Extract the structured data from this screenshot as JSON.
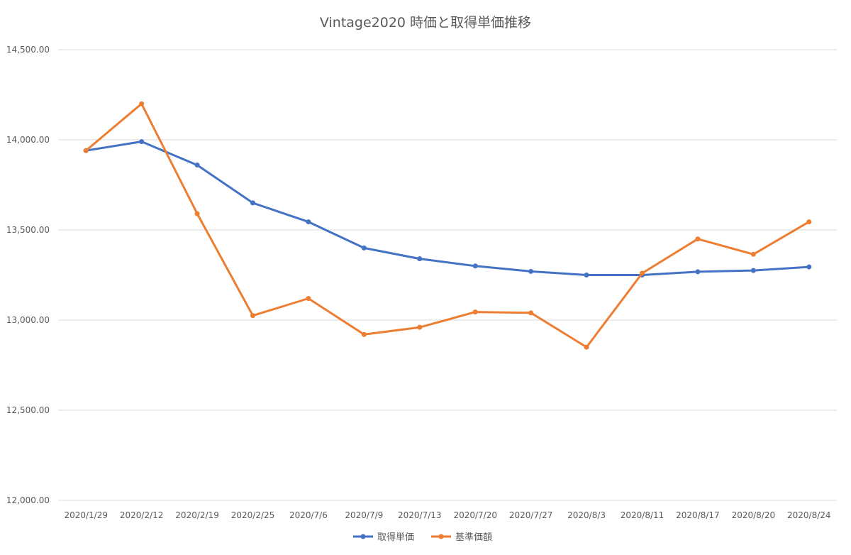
{
  "chart_data": {
    "type": "line",
    "title": "Vintage2020 時価と取得単価推移",
    "xlabel": "",
    "ylabel": "",
    "categories": [
      "2020/1/29",
      "2020/2/12",
      "2020/2/19",
      "2020/2/25",
      "2020/7/6",
      "2020/7/9",
      "2020/7/13",
      "2020/7/20",
      "2020/7/27",
      "2020/8/3",
      "2020/8/11",
      "2020/8/17",
      "2020/8/20",
      "2020/8/24"
    ],
    "ylim": [
      12000,
      14500
    ],
    "y_ticks": [
      12000,
      12500,
      13000,
      13500,
      14000,
      14500
    ],
    "y_tick_labels": [
      "12,000.00",
      "12,500.00",
      "13,000.00",
      "13,500.00",
      "14,000.00",
      "14,500.00"
    ],
    "grid": true,
    "legend_position": "bottom",
    "series": [
      {
        "name": "取得単価",
        "color": "#4472C4",
        "values": [
          13940,
          13990,
          13860,
          13650,
          13545,
          13400,
          13340,
          13300,
          13270,
          13250,
          13250,
          13268,
          13275,
          13295
        ]
      },
      {
        "name": "基準価額",
        "color": "#ED7D31",
        "values": [
          13940,
          14200,
          13590,
          13025,
          13120,
          12920,
          12960,
          13045,
          13040,
          12850,
          13260,
          13450,
          13365,
          13545
        ]
      }
    ]
  }
}
